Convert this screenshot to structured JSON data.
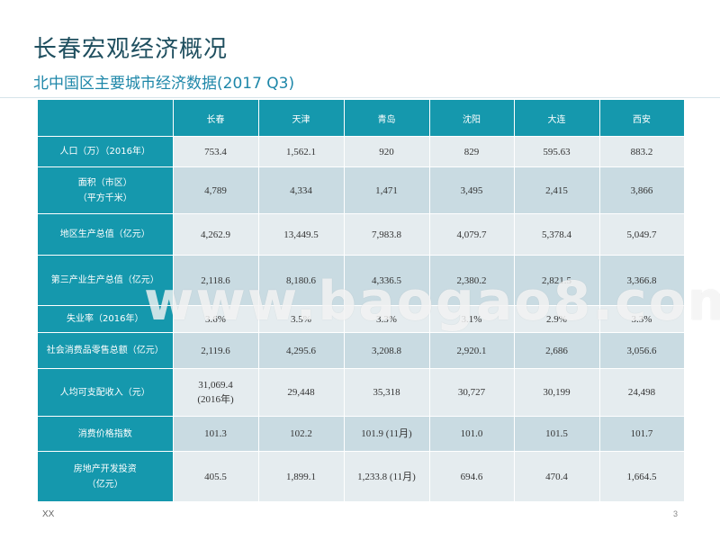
{
  "slide": {
    "title": "长春宏观经济概况",
    "subtitle": "北中国区主要城市经济数据(2017 Q3)",
    "footer_left": "XX",
    "page_number": "3",
    "watermark": "www.baogao8.com"
  },
  "table": {
    "corner": "",
    "cities": [
      "长春",
      "天津",
      "青岛",
      "沈阳",
      "大连",
      "西安"
    ],
    "rows": [
      {
        "label": [
          "人口（万）（2016年）"
        ],
        "values": [
          [
            "753.4"
          ],
          [
            "1,562.1"
          ],
          [
            "920"
          ],
          [
            "829"
          ],
          [
            "595.63"
          ],
          [
            "883.2"
          ]
        ]
      },
      {
        "label": [
          "面积（市区）",
          "（平方千米）"
        ],
        "values": [
          [
            "4,789"
          ],
          [
            "4,334"
          ],
          [
            "1,471"
          ],
          [
            "3,495"
          ],
          [
            "2,415"
          ],
          [
            "3,866"
          ]
        ]
      },
      {
        "label": [
          "地区生产总值（亿元）"
        ],
        "values": [
          [
            "4,262.9"
          ],
          [
            "13,449.5"
          ],
          [
            "7,983.8"
          ],
          [
            "4,079.7"
          ],
          [
            "5,378.4"
          ],
          [
            "5,049.7"
          ]
        ]
      },
      {
        "label": [
          "第三产业生产总值（亿元）"
        ],
        "values": [
          [
            "2,118.6"
          ],
          [
            "8,180.6"
          ],
          [
            "4,336.5"
          ],
          [
            "2,380.2"
          ],
          [
            "2,821.5"
          ],
          [
            "3,366.8"
          ]
        ]
      },
      {
        "label": [
          "失业率（2016年）"
        ],
        "values": [
          [
            "3.6%"
          ],
          [
            "3.5%"
          ],
          [
            "3.3%"
          ],
          [
            "3.1%"
          ],
          [
            "2.9%"
          ],
          [
            "3.3%"
          ]
        ]
      },
      {
        "label": [
          "社会消费品零售总额（亿元）"
        ],
        "values": [
          [
            "2,119.6"
          ],
          [
            "4,295.6"
          ],
          [
            "3,208.8"
          ],
          [
            "2,920.1"
          ],
          [
            "2,686"
          ],
          [
            "3,056.6"
          ]
        ]
      },
      {
        "label": [
          "人均可支配收入（元）"
        ],
        "values": [
          [
            "31,069.4",
            "(2016年)"
          ],
          [
            "29,448"
          ],
          [
            "35,318"
          ],
          [
            "30,727"
          ],
          [
            "30,199"
          ],
          [
            "24,498"
          ]
        ]
      },
      {
        "label": [
          "消费价格指数"
        ],
        "values": [
          [
            "101.3"
          ],
          [
            "102.2"
          ],
          [
            "101.9 (11月)"
          ],
          [
            "101.0"
          ],
          [
            "101.5"
          ],
          [
            "101.7"
          ]
        ]
      },
      {
        "label": [
          "房地产开发投资",
          "（亿元）"
        ],
        "values": [
          [
            "405.5"
          ],
          [
            "1,899.1"
          ],
          [
            "1,233.8 (11月)"
          ],
          [
            "694.6"
          ],
          [
            "470.4"
          ],
          [
            "1,664.5"
          ]
        ]
      }
    ]
  }
}
